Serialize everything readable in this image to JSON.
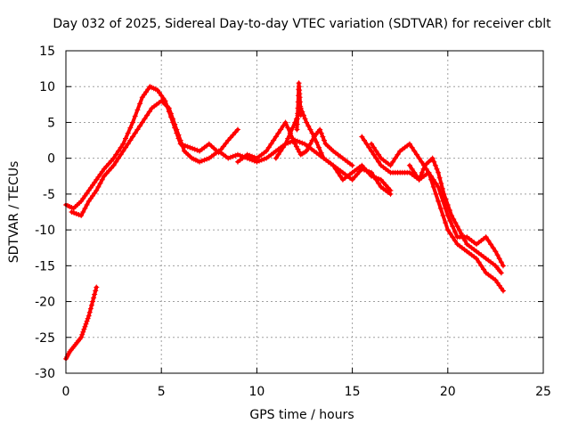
{
  "chart_data": {
    "type": "scatter",
    "title": "Day 032 of 2025, Sidereal Day-to-day VTEC variation (SDTVAR) for receiver cblt",
    "xlabel": "GPS time / hours",
    "ylabel": "SDTVAR / TECUs",
    "xlim": [
      0,
      25
    ],
    "ylim": [
      -30,
      15
    ],
    "xticks": [
      0,
      5,
      10,
      15,
      20,
      25
    ],
    "yticks": [
      -30,
      -25,
      -20,
      -15,
      -10,
      -5,
      0,
      5,
      10,
      15
    ],
    "grid": true,
    "marker": "plus",
    "series_color": "#ff0000",
    "series": [
      {
        "name": "trace-main-upper",
        "x": [
          0,
          0.4,
          0.8,
          1.2,
          1.6,
          2.0,
          2.5,
          3.0,
          3.5,
          4.0,
          4.4,
          4.8,
          5.2,
          5.6,
          6.0,
          6.5,
          7.0,
          7.5,
          8.0,
          8.5,
          9.0
        ],
        "y": [
          -6.5,
          -7,
          -6,
          -4.5,
          -3,
          -1.5,
          0,
          2,
          5,
          8.5,
          10,
          9.5,
          8,
          5,
          2,
          1.5,
          1,
          2,
          0.8,
          2.5,
          4
        ]
      },
      {
        "name": "trace-main-lower",
        "x": [
          0.3,
          0.8,
          1.2,
          1.6,
          2.0,
          2.5,
          3.0,
          3.5,
          4.0,
          4.5,
          5.0,
          5.4,
          5.8,
          6.2,
          6.6,
          7.0,
          7.5,
          8.0,
          8.5,
          9.0,
          9.5,
          10.0,
          10.5,
          11.0,
          11.5,
          12.0,
          12.5,
          13.0,
          13.5,
          14.0,
          14.5,
          15.0,
          15.5,
          16.0,
          16.5,
          17.0
        ],
        "y": [
          -7.5,
          -8,
          -6,
          -4.5,
          -2.5,
          -1,
          1,
          3,
          5,
          7,
          8,
          7,
          4,
          1,
          0,
          -0.5,
          0,
          1,
          0,
          0.5,
          0,
          -0.5,
          0,
          1,
          2,
          2.5,
          2,
          1,
          0,
          -1,
          -3,
          -2,
          -1,
          -2.5,
          -3,
          -4.5
        ]
      },
      {
        "name": "trace-middle-a",
        "x": [
          9.0,
          9.5,
          10.0,
          10.5,
          11.0,
          11.5,
          12.0,
          12.3,
          12.6,
          13.0,
          13.5,
          14.0,
          14.5,
          15.0,
          15.5,
          16.0,
          16.5,
          17.0
        ],
        "y": [
          -0.5,
          0.5,
          0,
          1,
          3,
          5,
          2,
          0.5,
          1,
          3,
          0,
          -1,
          -2,
          -3,
          -1.5,
          -2,
          -4,
          -5
        ]
      },
      {
        "name": "trace-middle-b",
        "x": [
          11.0,
          11.5,
          12.0,
          12.3,
          12.6,
          13.0,
          13.3,
          13.6,
          14.0,
          14.5,
          15.0
        ],
        "y": [
          0,
          2,
          5,
          7,
          5,
          3,
          4,
          2,
          1,
          0,
          -1
        ]
      },
      {
        "name": "trace-spike",
        "x": [
          12.1,
          12.15,
          12.2,
          12.25,
          12.3
        ],
        "y": [
          4,
          7,
          10.5,
          8.5,
          6
        ]
      },
      {
        "name": "trace-right-a",
        "x": [
          15.5,
          16.0,
          16.5,
          17.0,
          17.5,
          18.0,
          18.5,
          18.8,
          19.2,
          19.5,
          19.8,
          20.2,
          20.6,
          21.0,
          21.5,
          22.0,
          22.5,
          22.8
        ],
        "y": [
          3,
          1,
          -1,
          -2,
          -2,
          -2,
          -3,
          -1,
          0,
          -2,
          -5,
          -8,
          -10,
          -12,
          -13,
          -14,
          -15,
          -16
        ]
      },
      {
        "name": "trace-right-b",
        "x": [
          16.0,
          16.5,
          17.0,
          17.5,
          18.0,
          18.5,
          19.0,
          19.5,
          20.0,
          20.5,
          21.0,
          21.5,
          22.0,
          22.5,
          22.9
        ],
        "y": [
          2,
          0,
          -1,
          1,
          2,
          0,
          -2,
          -4,
          -8,
          -11,
          -11,
          -12,
          -11,
          -13,
          -15
        ]
      },
      {
        "name": "trace-right-c",
        "x": [
          18.0,
          18.5,
          19.0,
          19.5,
          20.0,
          20.5,
          21.0,
          21.5,
          22.0,
          22.5,
          22.9
        ],
        "y": [
          -1,
          -3,
          -2,
          -6,
          -10,
          -12,
          -13,
          -14,
          -16,
          -17,
          -18.5
        ]
      },
      {
        "name": "trace-left-bottom",
        "x": [
          0,
          0.2,
          0.5,
          0.8,
          1.0,
          1.2,
          1.4,
          1.6
        ],
        "y": [
          -28,
          -27,
          -26,
          -25,
          -23.5,
          -22,
          -20,
          -18
        ]
      }
    ]
  }
}
